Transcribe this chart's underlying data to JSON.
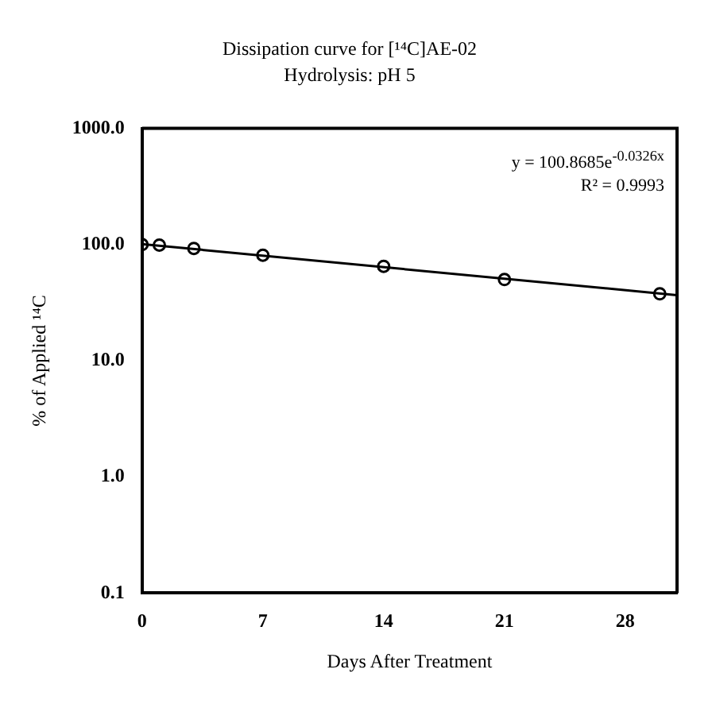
{
  "chart_data": {
    "type": "scatter",
    "title": "Dissipation curve for [¹⁴C]AE-02",
    "subtitle": "Hydrolysis: pH 5",
    "xlabel": "Days After Treatment",
    "ylabel": "% of Applied ¹⁴C",
    "series": [
      {
        "marker": "circle",
        "color": "#000000",
        "x": [
          0,
          1,
          3,
          7,
          14,
          21,
          30
        ],
        "values": [
          100,
          99,
          92.6,
          81,
          65,
          50,
          37.7
        ]
      },
      {
        "type": "line",
        "marker": "none",
        "color": "#000000",
        "x": [
          0,
          31
        ],
        "values": [
          100.87,
          36.7
        ]
      }
    ],
    "xlim": [
      0,
      31
    ],
    "xticks": [
      0,
      7,
      14,
      21,
      28
    ],
    "ylim": [
      0.1,
      1000
    ],
    "yticks": [
      {
        "value": 0.1,
        "label": "0.1"
      },
      {
        "value": 1,
        "label": "1.0"
      },
      {
        "value": 10,
        "label": "10.0"
      },
      {
        "value": 100,
        "label": "100.0"
      },
      {
        "value": 1000,
        "label": "1000.0"
      }
    ],
    "log": "y",
    "grid": false,
    "legend": false,
    "annotations": [
      "y = 100.8685e$^{-0.0326x}$",
      "R² = 0.9993"
    ]
  }
}
